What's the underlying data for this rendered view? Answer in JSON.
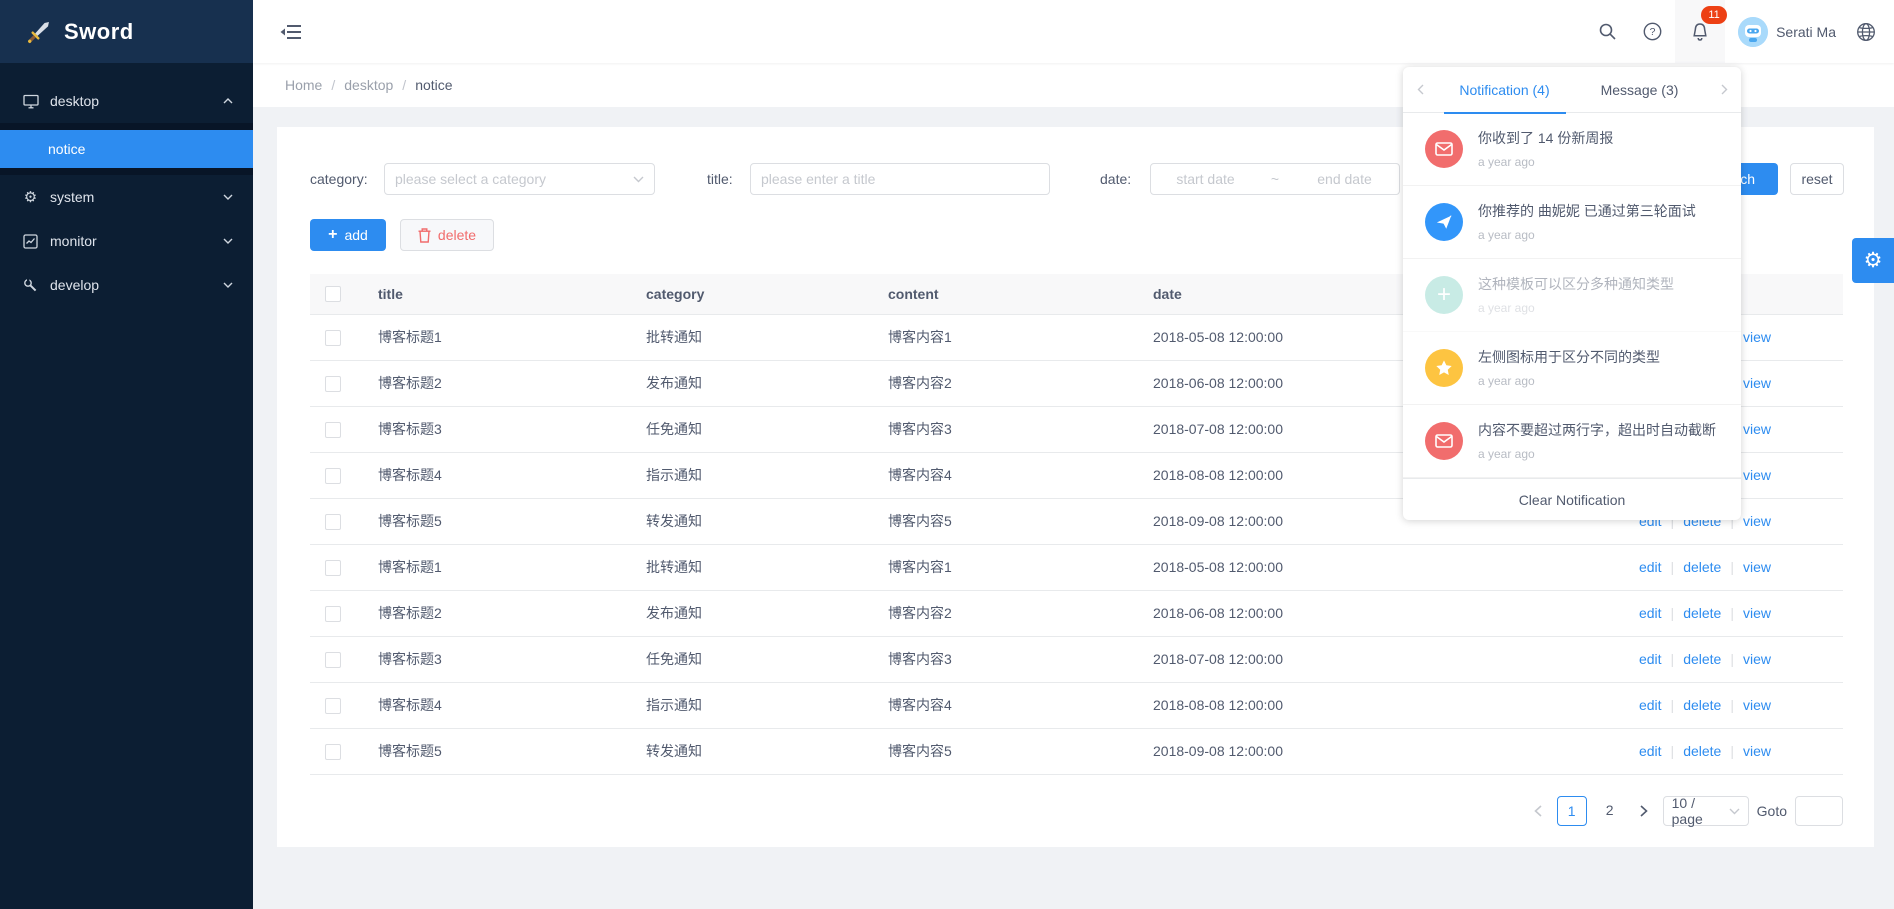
{
  "colors": {
    "accent": "#2d8cf0",
    "badge": "#ed4014",
    "sidebar_bg": "#0c1e33",
    "page_bg": "#f0f2f5"
  },
  "sidebar": {
    "logo_text": "Sword",
    "items": [
      {
        "label": "desktop",
        "icon": "monitor-icon",
        "expanded": true,
        "children": [
          {
            "label": "notice",
            "active": true
          }
        ]
      },
      {
        "label": "system",
        "icon": "gear-icon",
        "expanded": false
      },
      {
        "label": "monitor",
        "icon": "chart-icon",
        "expanded": false
      },
      {
        "label": "develop",
        "icon": "wrench-icon",
        "expanded": false
      }
    ]
  },
  "header": {
    "user_name": "Serati Ma",
    "badge_count": "11"
  },
  "breadcrumb": {
    "items": [
      "Home",
      "desktop",
      "notice"
    ],
    "separator": "/"
  },
  "filters": {
    "category_label": "category:",
    "category_placeholder": "please select a category",
    "title_label": "title:",
    "title_placeholder": "please enter a title",
    "date_label": "date:",
    "date_start_placeholder": "start date",
    "date_tilde": "~",
    "date_end_placeholder": "end date",
    "search_label": "search",
    "reset_label": "reset"
  },
  "toolbar": {
    "add_label": "add",
    "delete_label": "delete"
  },
  "table": {
    "headers": [
      "title",
      "category",
      "content",
      "date"
    ],
    "row_actions": [
      "edit",
      "delete",
      "view"
    ],
    "rows": [
      {
        "title": "博客标题1",
        "category": "批转通知",
        "content": "博客内容1",
        "date": "2018-05-08 12:00:00"
      },
      {
        "title": "博客标题2",
        "category": "发布通知",
        "content": "博客内容2",
        "date": "2018-06-08 12:00:00"
      },
      {
        "title": "博客标题3",
        "category": "任免通知",
        "content": "博客内容3",
        "date": "2018-07-08 12:00:00"
      },
      {
        "title": "博客标题4",
        "category": "指示通知",
        "content": "博客内容4",
        "date": "2018-08-08 12:00:00"
      },
      {
        "title": "博客标题5",
        "category": "转发通知",
        "content": "博客内容5",
        "date": "2018-09-08 12:00:00"
      },
      {
        "title": "博客标题1",
        "category": "批转通知",
        "content": "博客内容1",
        "date": "2018-05-08 12:00:00"
      },
      {
        "title": "博客标题2",
        "category": "发布通知",
        "content": "博客内容2",
        "date": "2018-06-08 12:00:00"
      },
      {
        "title": "博客标题3",
        "category": "任免通知",
        "content": "博客内容3",
        "date": "2018-07-08 12:00:00"
      },
      {
        "title": "博客标题4",
        "category": "指示通知",
        "content": "博客内容4",
        "date": "2018-08-08 12:00:00"
      },
      {
        "title": "博客标题5",
        "category": "转发通知",
        "content": "博客内容5",
        "date": "2018-09-08 12:00:00"
      }
    ]
  },
  "pagination": {
    "pages": [
      "1",
      "2"
    ],
    "current_page": "1",
    "page_size_label": "10 / page",
    "goto_label": "Goto"
  },
  "notification_panel": {
    "tabs": [
      {
        "label": "Notification (4)",
        "active": true
      },
      {
        "label": "Message (3)",
        "active": false
      }
    ],
    "items": [
      {
        "icon": "mail-icon",
        "color": "#f16d6d",
        "title": "你收到了 14 份新周报",
        "time": "a year ago",
        "read": false
      },
      {
        "icon": "send-icon",
        "color": "#3296fa",
        "title": "你推荐的 曲妮妮 已通过第三轮面试",
        "time": "a year ago",
        "read": false
      },
      {
        "icon": "plus-icon",
        "color": "#87d4c6",
        "title": "这种模板可以区分多种通知类型",
        "time": "a year ago",
        "read": true
      },
      {
        "icon": "star-icon",
        "color": "#fdc441",
        "title": "左侧图标用于区分不同的类型",
        "time": "a year ago",
        "read": false
      },
      {
        "icon": "mail-icon",
        "color": "#f16d6d",
        "title": "内容不要超过两行字，超出时自动截断",
        "time": "a year ago",
        "read": false
      }
    ],
    "clear_label": "Clear Notification"
  }
}
